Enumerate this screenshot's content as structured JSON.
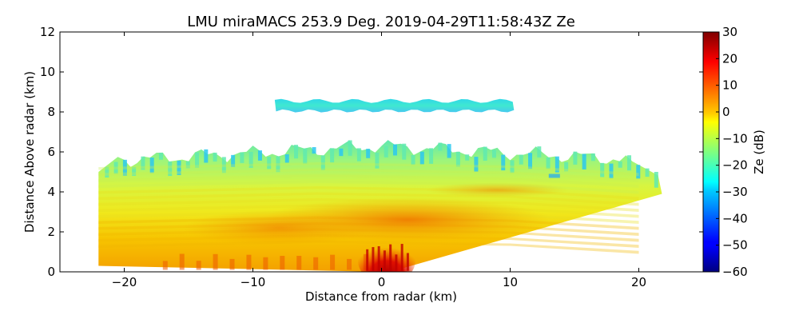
{
  "chart_data": {
    "type": "heatmap",
    "title": "LMU miraMACS 253.9 Deg. 2019-04-29T11:58:43Z  Ze",
    "xlabel": "Distance from radar (km)",
    "ylabel": "Distance Above radar  (km)",
    "xlim": [
      -25,
      25
    ],
    "ylim": [
      0,
      12
    ],
    "xticks": [
      -20,
      -10,
      0,
      10,
      20
    ],
    "xtick_labels": [
      "−20",
      "−10",
      "0",
      "10",
      "20"
    ],
    "yticks": [
      0,
      2,
      4,
      6,
      8,
      10,
      12
    ],
    "ytick_labels": [
      "0",
      "2",
      "4",
      "6",
      "8",
      "10",
      "12"
    ],
    "colorbar": {
      "label": "Ze (dB)",
      "range": [
        -60,
        30
      ],
      "colormap": "jet",
      "ticks": [
        30,
        20,
        10,
        0,
        -10,
        -20,
        -30,
        -40,
        -50,
        -60
      ],
      "tick_labels": [
        "30",
        "20",
        "10",
        "0",
        "−10",
        "−20",
        "−30",
        "−40",
        "−50",
        "−60"
      ]
    },
    "regions": [
      {
        "name": "upper-cloud-layer",
        "x_range": [
          -8.5,
          10.5
        ],
        "z_range": [
          8.0,
          8.7
        ],
        "ze_db": -25
      },
      {
        "name": "main-cloud-top",
        "x_range": [
          -22,
          22
        ],
        "z_top_km": 6.3,
        "ze_db": -15
      },
      {
        "name": "mid-layer",
        "x_range": [
          -22,
          22
        ],
        "z_range": [
          3.0,
          5.0
        ],
        "ze_db": -8
      },
      {
        "name": "lower-layer",
        "x_range": [
          -22,
          20
        ],
        "z_range": [
          1.0,
          3.0
        ],
        "ze_db": 0
      },
      {
        "name": "precipitation-core",
        "x_range": [
          -1.5,
          2.5
        ],
        "z_range": [
          0,
          1.5
        ],
        "ze_db": 25
      }
    ]
  }
}
